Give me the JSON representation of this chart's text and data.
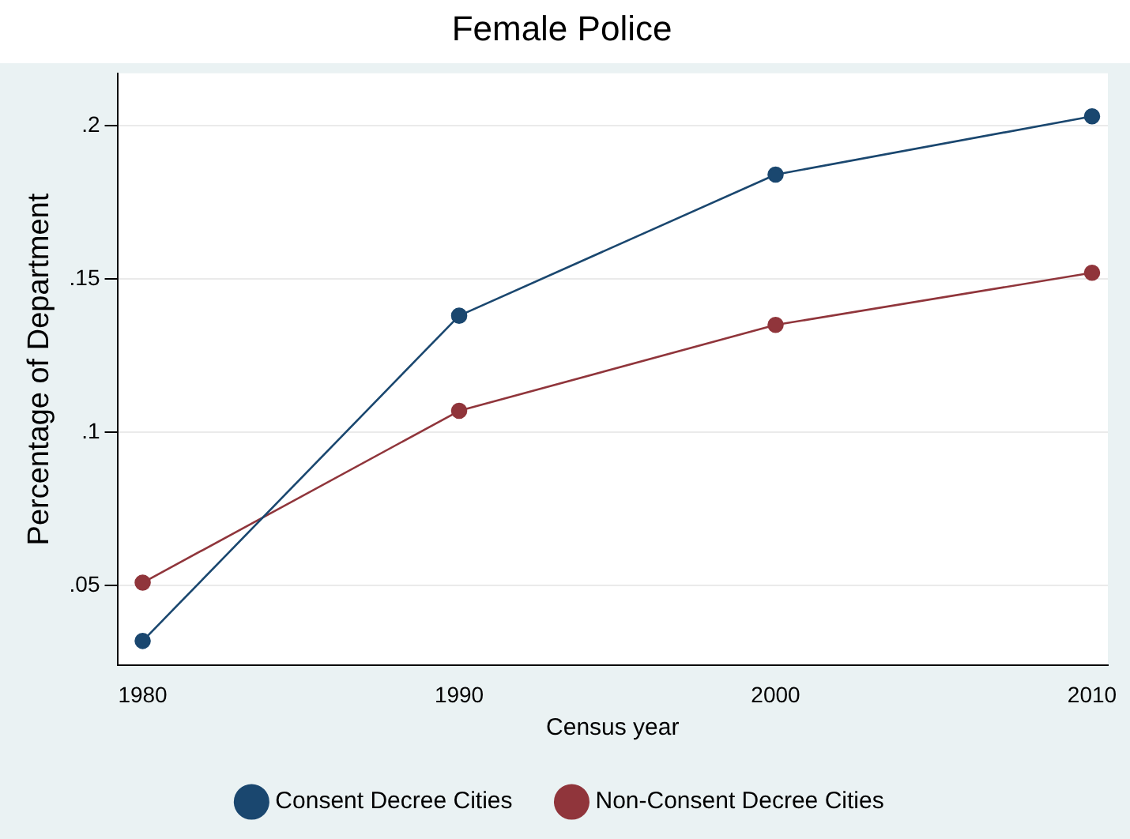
{
  "chart_data": {
    "type": "line",
    "title": "Female Police",
    "xlabel": "Census year",
    "ylabel": "Percentage of Department",
    "x": [
      1980,
      1990,
      2000,
      2010
    ],
    "series": [
      {
        "name": "Consent Decree Cities",
        "color": "#1a476f",
        "values": [
          0.032,
          0.138,
          0.184,
          0.203
        ]
      },
      {
        "name": "Non-Consent Decree Cities",
        "color": "#90353b",
        "values": [
          0.051,
          0.107,
          0.135,
          0.152
        ]
      }
    ],
    "xlim": [
      1979.2,
      2010.5
    ],
    "xticks": [
      1980,
      1990,
      2000,
      2010
    ],
    "ylim": [
      0.024,
      0.217
    ],
    "yticks": [
      {
        "value": 0.05,
        "label": ".05"
      },
      {
        "value": 0.1,
        "label": ".1"
      },
      {
        "value": 0.15,
        "label": ".15"
      },
      {
        "value": 0.2,
        "label": ".2"
      }
    ],
    "grid": "y",
    "legend": "bottom",
    "marker": "circle",
    "line_style": "solid"
  }
}
